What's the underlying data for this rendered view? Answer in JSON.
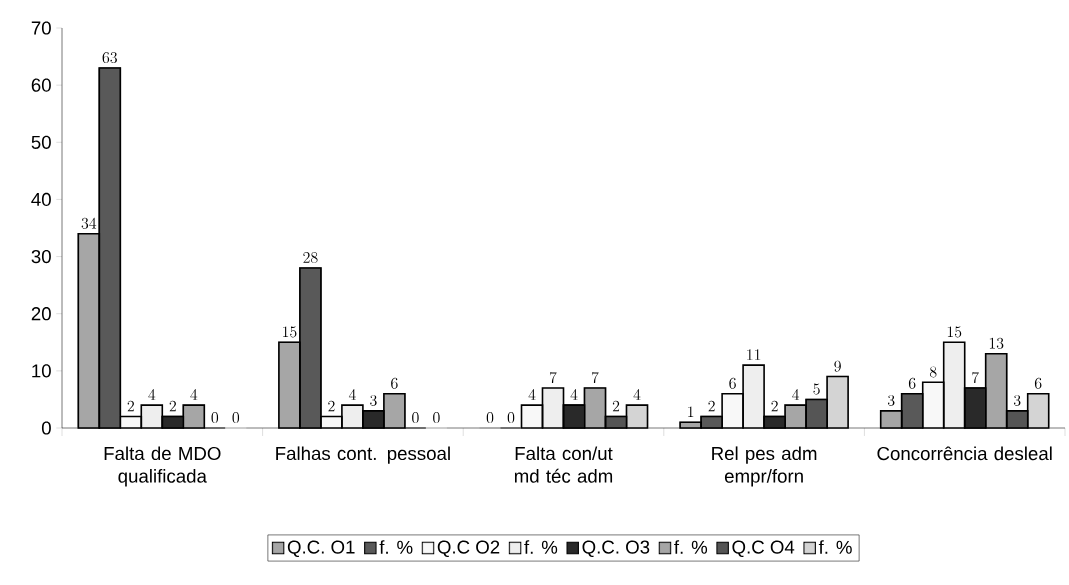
{
  "chart_data": {
    "type": "bar",
    "categories": [
      "Falta de MDO qualificada",
      "Falhas cont. pessoal",
      "Falta con/ut md téc adm",
      "Rel pes adm empr/forn",
      "Concorrência desleal"
    ],
    "series": [
      {
        "name": "Q.C. O1",
        "color": "#a6a6a6",
        "values": [
          34,
          15,
          0,
          1,
          3
        ]
      },
      {
        "name": "f. %",
        "color": "#595959",
        "values": [
          63,
          28,
          0,
          2,
          6
        ]
      },
      {
        "name": "Q.C O2",
        "color": "#f8f8f8",
        "values": [
          2,
          2,
          4,
          6,
          8
        ]
      },
      {
        "name": "f. %",
        "color": "#eeeeee",
        "values": [
          4,
          4,
          7,
          11,
          15
        ]
      },
      {
        "name": "Q.C. O3",
        "color": "#292929",
        "values": [
          2,
          3,
          4,
          2,
          7
        ]
      },
      {
        "name": "f. %",
        "color": "#a6a6a6",
        "values": [
          4,
          6,
          7,
          4,
          13
        ]
      },
      {
        "name": "Q.C O4",
        "color": "#555555",
        "values": [
          0,
          0,
          2,
          5,
          3
        ]
      },
      {
        "name": "f. %",
        "color": "#d4d4d4",
        "values": [
          0,
          0,
          4,
          9,
          6
        ]
      }
    ],
    "ylim": [
      0,
      70
    ],
    "yticks": [
      0,
      10,
      20,
      30,
      40,
      50,
      60,
      70
    ],
    "data_labels": true,
    "legend": "bottom"
  }
}
